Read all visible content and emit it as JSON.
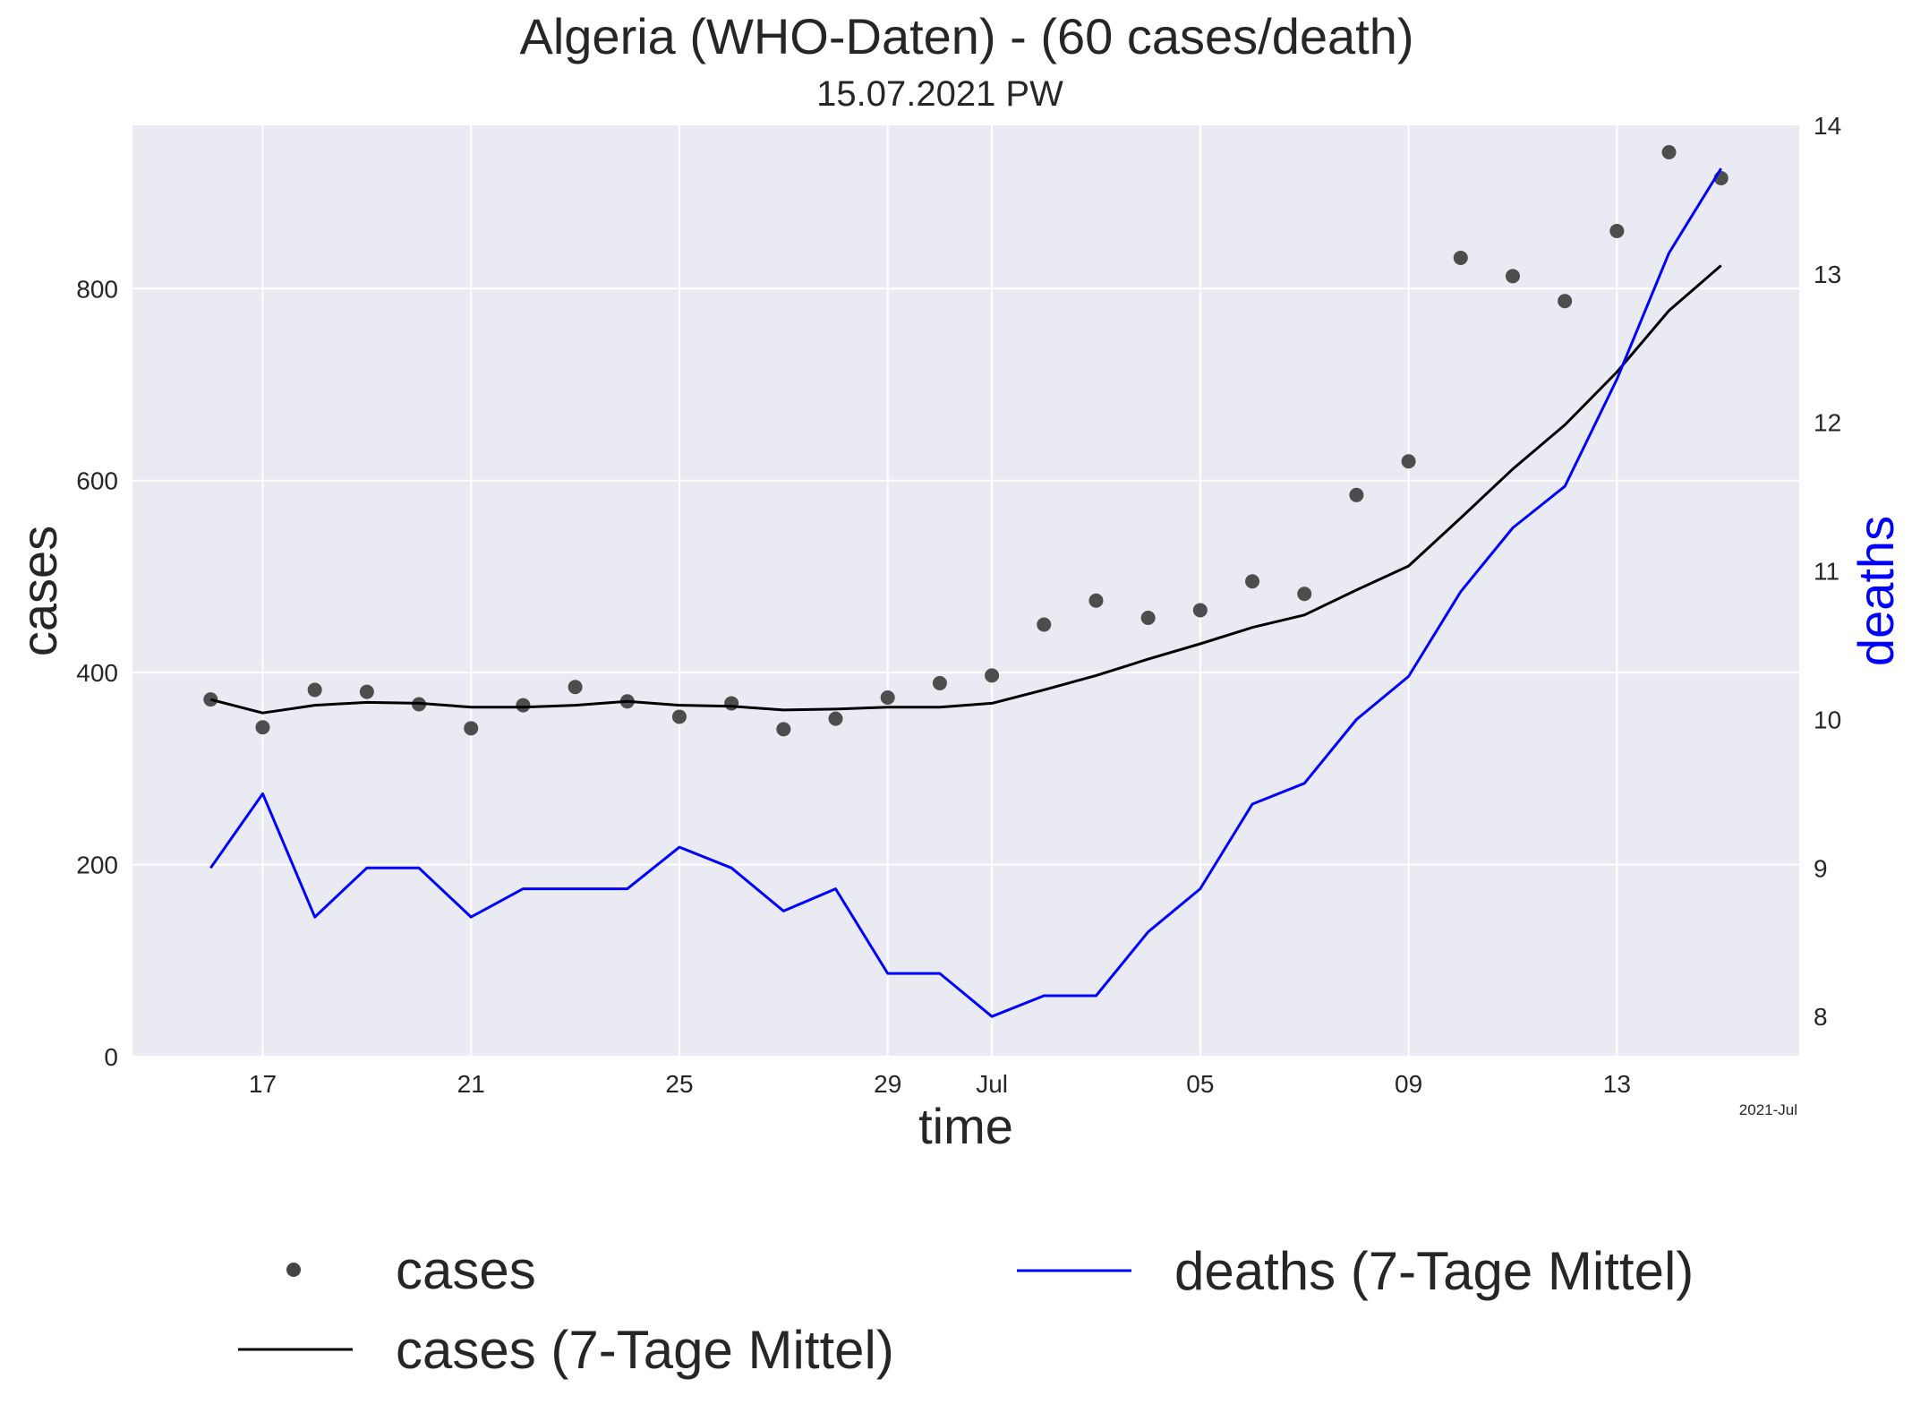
{
  "chart_data": {
    "type": "line",
    "title": "Algeria (WHO-Daten) - (60 cases/death)",
    "subtitle": "15.07.2021 PW",
    "xlabel": "time",
    "ylabel_left": "cases",
    "ylabel_right": "deaths",
    "x_offset_label": "2021-Jul",
    "x_dates": [
      "2021-06-16",
      "2021-06-17",
      "2021-06-18",
      "2021-06-19",
      "2021-06-20",
      "2021-06-21",
      "2021-06-22",
      "2021-06-23",
      "2021-06-24",
      "2021-06-25",
      "2021-06-26",
      "2021-06-27",
      "2021-06-28",
      "2021-06-29",
      "2021-06-30",
      "2021-07-01",
      "2021-07-02",
      "2021-07-03",
      "2021-07-04",
      "2021-07-05",
      "2021-07-06",
      "2021-07-07",
      "2021-07-08",
      "2021-07-09",
      "2021-07-10",
      "2021-07-11",
      "2021-07-12",
      "2021-07-13",
      "2021-07-14",
      "2021-07-15"
    ],
    "x_range": [
      "2021-06-14T12:00",
      "2021-07-16T12:00"
    ],
    "x_ticks": [
      {
        "date": "2021-06-17",
        "label": "17"
      },
      {
        "date": "2021-06-21",
        "label": "21"
      },
      {
        "date": "2021-06-25",
        "label": "25"
      },
      {
        "date": "2021-06-29",
        "label": "29"
      },
      {
        "date": "2021-07-01",
        "label": "Jul"
      },
      {
        "date": "2021-07-05",
        "label": "05"
      },
      {
        "date": "2021-07-09",
        "label": "09"
      },
      {
        "date": "2021-07-13",
        "label": "13"
      }
    ],
    "y_left": {
      "range": [
        0,
        970
      ],
      "ticks": [
        0,
        200,
        400,
        600,
        800
      ]
    },
    "y_right": {
      "range": [
        7.73,
        14
      ],
      "ticks": [
        8,
        9,
        10,
        11,
        12,
        13,
        14
      ]
    },
    "grid": true,
    "legend_position": "bottom",
    "series": [
      {
        "name": "cases",
        "kind": "scatter",
        "axis": "left",
        "color": "#444444",
        "values": [
          372,
          343,
          382,
          380,
          367,
          342,
          366,
          385,
          370,
          354,
          368,
          341,
          352,
          374,
          389,
          397,
          450,
          475,
          457,
          465,
          495,
          482,
          585,
          620,
          832,
          813,
          787,
          860,
          942,
          915
        ]
      },
      {
        "name": "cases (7-Tage Mittel)",
        "kind": "line",
        "axis": "left",
        "color": "#000000",
        "values": [
          372,
          358,
          366,
          369,
          368,
          364,
          364,
          366,
          370,
          366,
          365,
          361,
          362,
          364,
          364,
          368,
          382,
          397,
          414,
          430,
          447,
          460,
          486,
          511,
          561,
          612,
          658,
          713,
          777,
          824
        ]
      },
      {
        "name": "deaths (7-Tage Mittel)",
        "kind": "line",
        "axis": "right",
        "color": "#0000ff",
        "values": [
          9.0,
          9.5,
          8.67,
          9.0,
          9.0,
          8.67,
          8.86,
          8.86,
          8.86,
          9.14,
          9.0,
          8.71,
          8.86,
          8.29,
          8.29,
          8.0,
          8.14,
          8.14,
          8.57,
          8.86,
          9.43,
          9.57,
          10.0,
          10.29,
          10.86,
          11.29,
          11.57,
          12.29,
          13.14,
          13.71
        ]
      }
    ]
  }
}
